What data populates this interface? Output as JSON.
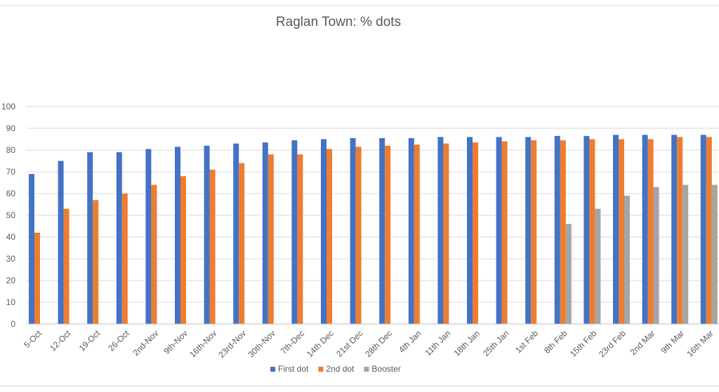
{
  "chart_data": {
    "type": "bar",
    "title": "Raglan Town: % dots",
    "xlabel": "",
    "ylabel": "",
    "ylim": [
      0,
      100
    ],
    "yticks": [
      0,
      10,
      20,
      30,
      40,
      50,
      60,
      70,
      80,
      90,
      100
    ],
    "grid": true,
    "legend_position": "bottom",
    "categories": [
      "5-Oct",
      "12-Oct",
      "19-Oct",
      "26-Oct",
      "2nd-Nov",
      "9th-Nov",
      "16th-Nov",
      "23rd-Nov",
      "30th-Nov",
      "7th-Dec",
      "14th Dec",
      "21st Dec",
      "28th Dec",
      "4th Jan",
      "11th Jan",
      "18th Jan",
      "25th Jan",
      "1st Feb",
      "8th Feb",
      "15th Feb",
      "23rd Feb",
      "2nd Mar",
      "9th Mar",
      "16th Mar"
    ],
    "series": [
      {
        "name": "First dot",
        "color": "#4472c4",
        "values": [
          69,
          75,
          79,
          79,
          80.5,
          81.5,
          82,
          83,
          83.5,
          84.5,
          85,
          85.5,
          85.5,
          85.5,
          86,
          86,
          86,
          86,
          86.5,
          86.5,
          87,
          87,
          87,
          87
        ]
      },
      {
        "name": "2nd dot",
        "color": "#ed7d31",
        "values": [
          42,
          53,
          57,
          60,
          64,
          68,
          71,
          74,
          78,
          78,
          80.5,
          81.5,
          82,
          82.5,
          83,
          83.5,
          84,
          84.5,
          84.5,
          85,
          85,
          85,
          86,
          86
        ]
      },
      {
        "name": "Booster",
        "color": "#a5a5a5",
        "values": [
          null,
          null,
          null,
          null,
          null,
          null,
          null,
          null,
          null,
          null,
          null,
          null,
          null,
          null,
          null,
          null,
          null,
          null,
          46,
          53,
          59,
          63,
          64,
          64
        ]
      }
    ]
  }
}
